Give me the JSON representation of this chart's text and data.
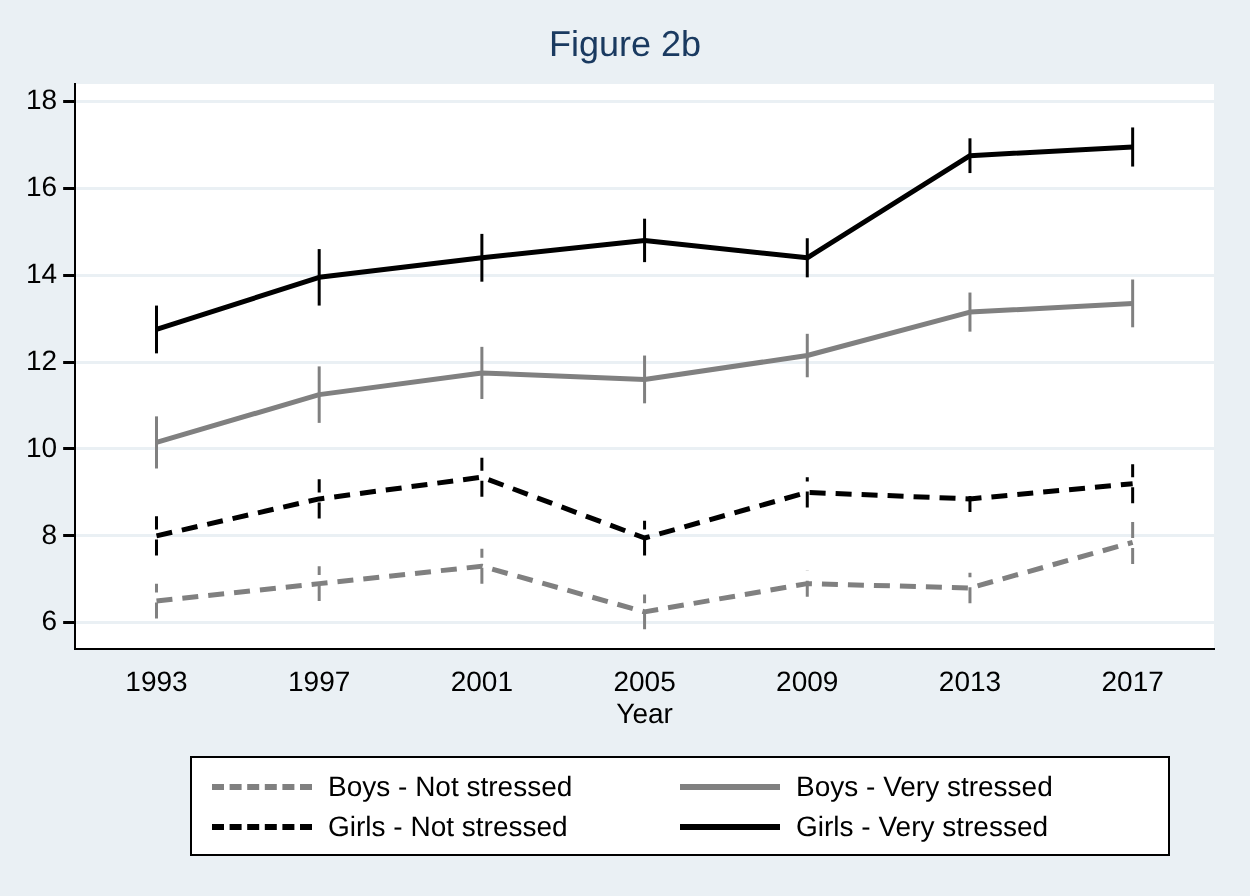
{
  "chart_data": {
    "type": "line",
    "title": "Figure 2b",
    "xlabel": "Year",
    "x": [
      1993,
      1997,
      2001,
      2005,
      2009,
      2013,
      2017
    ],
    "xlim": [
      1991,
      2019
    ],
    "xticks": [
      1993,
      1997,
      2001,
      2005,
      2009,
      2013,
      2017
    ],
    "ylim": [
      5.4,
      18.4
    ],
    "yticks": [
      6,
      8,
      10,
      12,
      14,
      16,
      18
    ],
    "grid": "y",
    "legend": "bottom",
    "marker": "none",
    "series": [
      {
        "name": "Boys - Not stressed",
        "color": "#808080",
        "line_style": "dashed",
        "values": [
          6.5,
          6.9,
          7.3,
          6.25,
          6.9,
          6.8,
          7.85
        ],
        "errors": [
          0.4,
          0.4,
          0.4,
          0.4,
          0.3,
          0.35,
          0.5
        ]
      },
      {
        "name": "Boys - Very stressed",
        "color": "#808080",
        "line_style": "solid",
        "values": [
          10.15,
          11.25,
          11.75,
          11.6,
          12.15,
          13.15,
          13.35
        ],
        "errors": [
          0.6,
          0.65,
          0.6,
          0.55,
          0.5,
          0.45,
          0.55
        ]
      },
      {
        "name": "Girls - Not stressed",
        "color": "#000000",
        "line_style": "dashed",
        "values": [
          8.0,
          8.85,
          9.35,
          7.95,
          9.0,
          8.85,
          9.2
        ],
        "errors": [
          0.45,
          0.45,
          0.45,
          0.4,
          0.35,
          0.3,
          0.45
        ]
      },
      {
        "name": "Girls - Very stressed",
        "color": "#000000",
        "line_style": "solid",
        "values": [
          12.75,
          13.95,
          14.4,
          14.8,
          14.4,
          16.75,
          16.95
        ],
        "errors": [
          0.55,
          0.65,
          0.55,
          0.5,
          0.45,
          0.4,
          0.45
        ]
      }
    ]
  }
}
